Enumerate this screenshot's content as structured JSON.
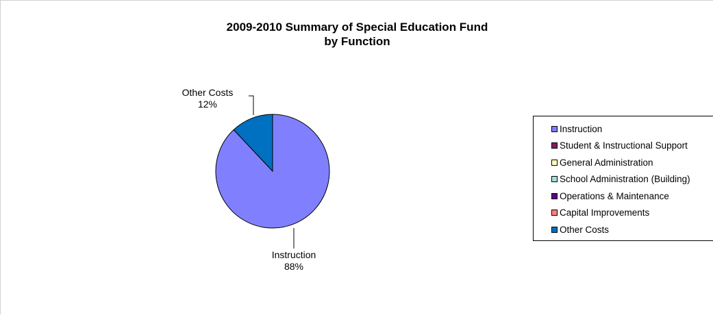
{
  "chart_data": {
    "type": "pie",
    "title_line1": "2009-2010 Summary of Special Education Fund",
    "title_line2": "by Function",
    "slices": [
      {
        "name": "Instruction",
        "value": 88,
        "label_name": "Instruction",
        "label_pct": "88%",
        "color": "#8080FF"
      },
      {
        "name": "Student & Instructional Support",
        "value": 0,
        "label_name": "",
        "label_pct": "",
        "color": "#802060"
      },
      {
        "name": "General Administration",
        "value": 0,
        "label_name": "",
        "label_pct": "",
        "color": "#FFFFC0"
      },
      {
        "name": "School Administration (Building)",
        "value": 0,
        "label_name": "",
        "label_pct": "",
        "color": "#A0E0E0"
      },
      {
        "name": "Operations & Maintenance",
        "value": 0,
        "label_name": "",
        "label_pct": "",
        "color": "#600080"
      },
      {
        "name": "Capital Improvements",
        "value": 0,
        "label_name": "",
        "label_pct": "",
        "color": "#FF8080"
      },
      {
        "name": "Other Costs",
        "value": 12,
        "label_name": "Other Costs",
        "label_pct": "12%",
        "color": "#0070C0"
      }
    ],
    "legend_position": "right"
  }
}
